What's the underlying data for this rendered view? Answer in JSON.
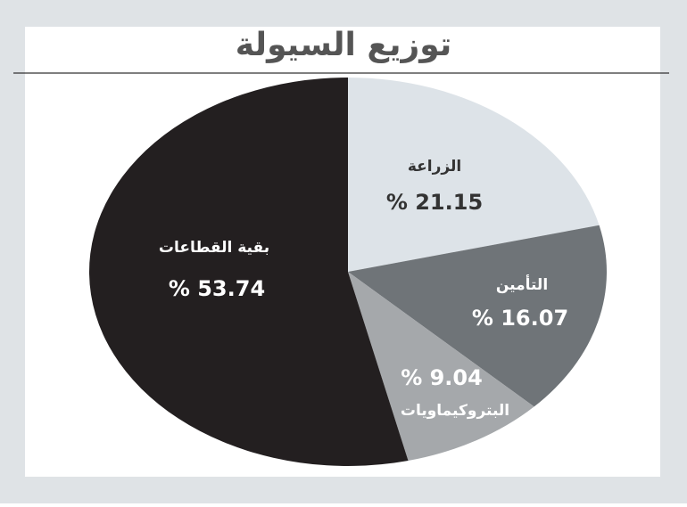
{
  "chart_data": {
    "type": "pie",
    "title": "توزيع السيولة",
    "categories": [
      "الزراعة",
      "التأمين",
      "البتروكيماويات",
      "بقية القطاعات"
    ],
    "values": [
      21.15,
      16.07,
      9.04,
      53.74
    ],
    "value_labels": [
      "% 21.15",
      "% 16.07",
      "% 9.04",
      "% 53.74"
    ],
    "colors": [
      "#dde3e8",
      "#6f7478",
      "#a5a8ab",
      "#231f20"
    ]
  }
}
